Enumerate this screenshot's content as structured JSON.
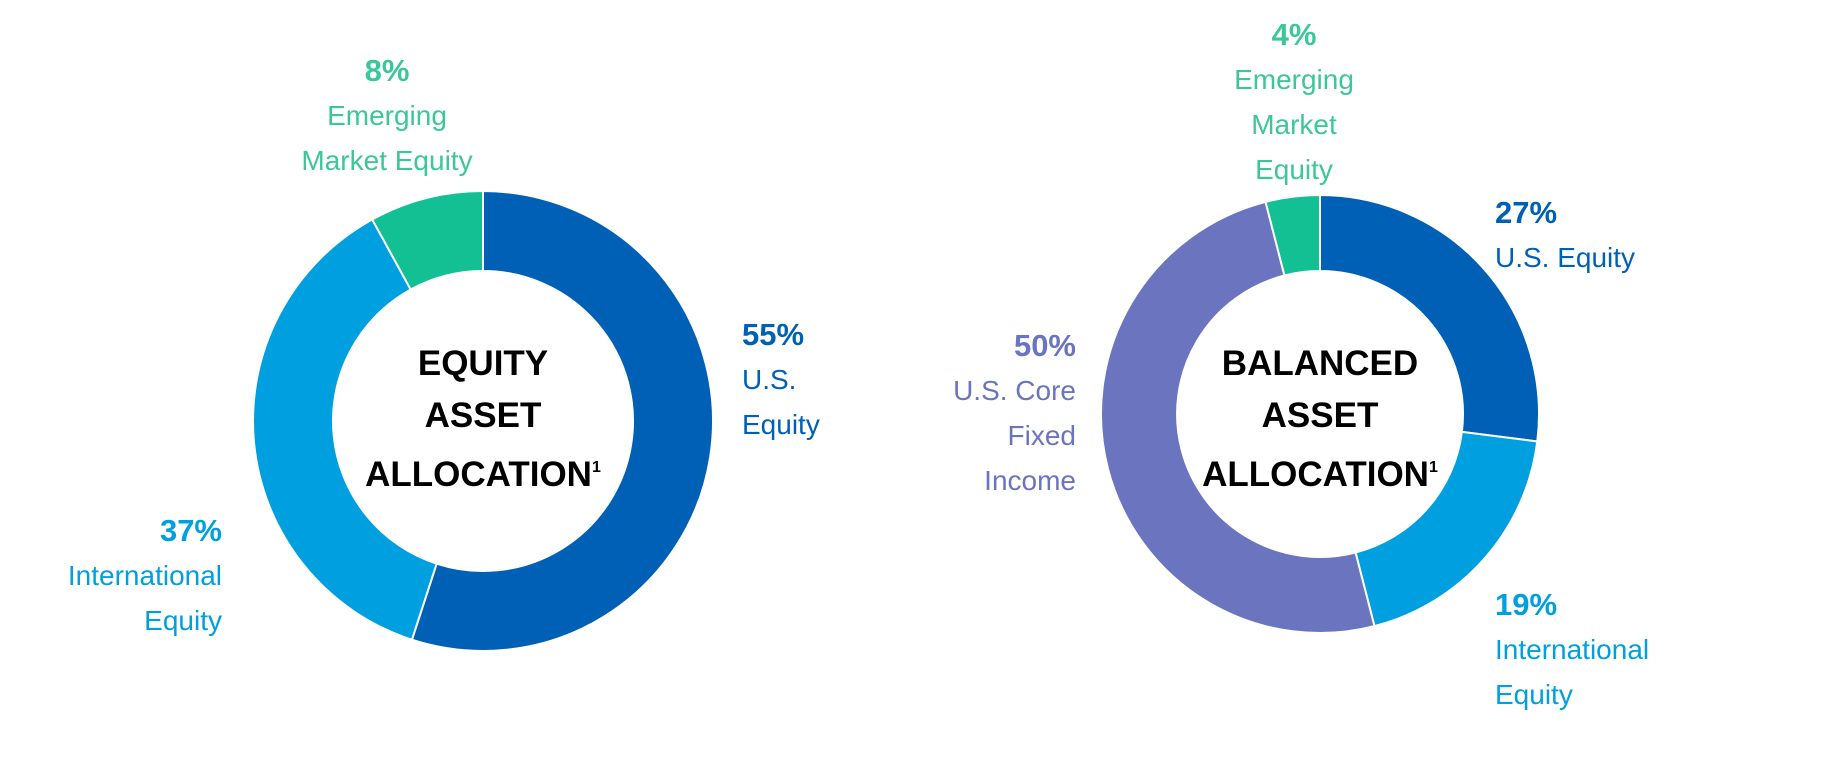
{
  "chart_data": [
    {
      "type": "pie",
      "donut": true,
      "title_lines": [
        "EQUITY",
        "ASSET",
        "ALLOCATION"
      ],
      "title_superscript": "1",
      "slices": [
        {
          "pct_label": "55%",
          "label_lines": [
            "U.S.",
            "Equity"
          ],
          "value": 55,
          "color": "#0060b5"
        },
        {
          "pct_label": "37%",
          "label_lines": [
            "International",
            "Equity"
          ],
          "value": 37,
          "color": "#009fdf"
        },
        {
          "pct_label": "8%",
          "label_lines": [
            "Emerging",
            "Market Equity"
          ],
          "value": 8,
          "color": "#13c094",
          "text_color": "#3cc79a"
        }
      ]
    },
    {
      "type": "pie",
      "donut": true,
      "title_lines": [
        "BALANCED",
        "ASSET",
        "ALLOCATION"
      ],
      "title_superscript": "1",
      "slices": [
        {
          "pct_label": "27%",
          "label_lines": [
            "U.S. Equity"
          ],
          "value": 27,
          "color": "#0060b5"
        },
        {
          "pct_label": "19%",
          "label_lines": [
            "International",
            "Equity"
          ],
          "value": 19,
          "color": "#009fdf"
        },
        {
          "pct_label": "50%",
          "label_lines": [
            "U.S. Core",
            "Fixed",
            "Income"
          ],
          "value": 50,
          "color": "#6a74bf"
        },
        {
          "pct_label": "4%",
          "label_lines": [
            "Emerging",
            "Market",
            "Equity"
          ],
          "value": 4,
          "color": "#13c094",
          "text_color": "#3cc79a"
        }
      ]
    }
  ]
}
